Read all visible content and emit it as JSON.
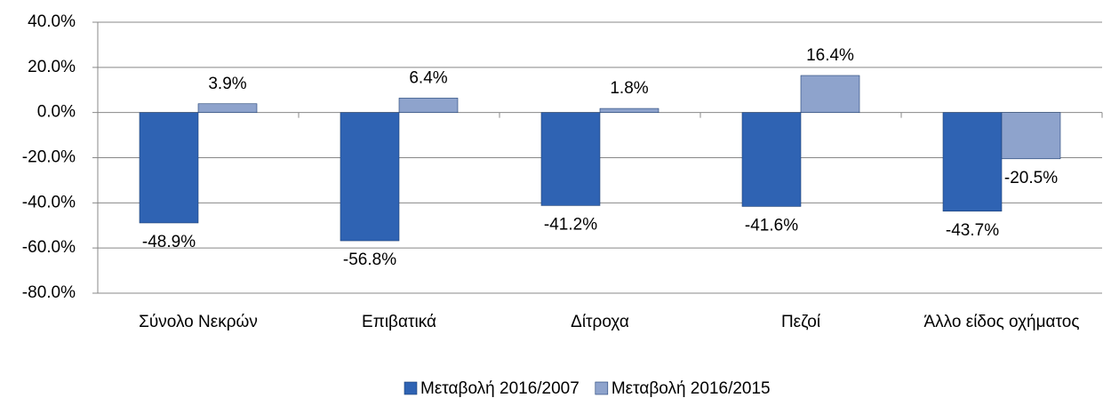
{
  "chart_data": {
    "type": "bar",
    "categories": [
      "Σύνολο Νεκρών",
      "Επιβατικά",
      "Δίτροχα",
      "Πεζοί",
      "Άλλο είδος οχήματος"
    ],
    "series": [
      {
        "name": "Μεταβολή 2016/2007",
        "color": "#2f63b3",
        "values": [
          -48.9,
          -56.8,
          -41.2,
          -41.6,
          -43.7
        ],
        "value_labels": [
          "-48.9%",
          "-56.8%",
          "-41.2%",
          "-41.6%",
          "-43.7%"
        ]
      },
      {
        "name": "Μεταβολή 2016/2015",
        "color": "#8ea3cc",
        "values": [
          3.9,
          6.4,
          1.8,
          16.4,
          -20.5
        ],
        "value_labels": [
          "3.9%",
          "6.4%",
          "1.8%",
          "16.4%",
          "-20.5%"
        ]
      }
    ],
    "ylim": [
      -80,
      40
    ],
    "yticks": [
      {
        "value": -80,
        "label": "-80.0%"
      },
      {
        "value": -60,
        "label": "-60.0%"
      },
      {
        "value": -40,
        "label": "-40.0%"
      },
      {
        "value": -20,
        "label": "-20.0%"
      },
      {
        "value": 0,
        "label": "0.0%"
      },
      {
        "value": 20,
        "label": "20.0%"
      },
      {
        "value": 40,
        "label": "40.0%"
      }
    ],
    "legend": "bottom"
  }
}
